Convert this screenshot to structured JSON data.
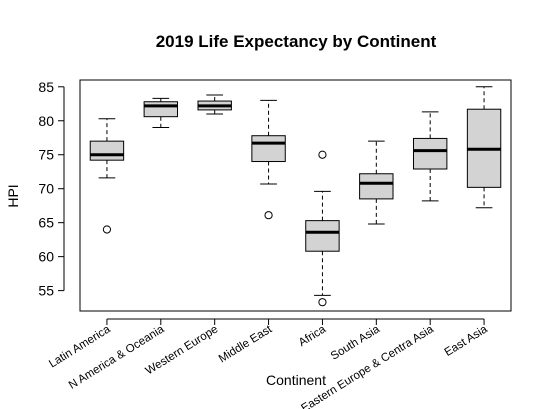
{
  "chart_data": {
    "type": "boxplot",
    "title": "2019 Life Expectancy by Continent",
    "xlabel": "Continent",
    "ylabel": "HPI",
    "ylim": [
      52,
      86
    ],
    "yticks": [
      55,
      60,
      65,
      70,
      75,
      80,
      85
    ],
    "grid": false,
    "colors": {
      "box_fill": "#d3d3d3",
      "stroke": "#000000",
      "median": "#000000"
    },
    "categories": [
      "Latin America",
      "N America & Oceania",
      "Western Europe",
      "Middle East",
      "Africa",
      "South Asia",
      "Eastern Europe & Centra Asia",
      "East Asia"
    ],
    "boxes": [
      {
        "name": "Latin America",
        "whisker_low": 71.6,
        "q1": 74.2,
        "median": 75.0,
        "q3": 77.0,
        "whisker_high": 80.3,
        "outliers": [
          64.0
        ]
      },
      {
        "name": "N America & Oceania",
        "whisker_low": 79.0,
        "q1": 80.6,
        "median": 82.2,
        "q3": 82.8,
        "whisker_high": 83.3,
        "outliers": []
      },
      {
        "name": "Western Europe",
        "whisker_low": 81.0,
        "q1": 81.6,
        "median": 82.2,
        "q3": 82.9,
        "whisker_high": 83.8,
        "outliers": []
      },
      {
        "name": "Middle East",
        "whisker_low": 70.7,
        "q1": 74.0,
        "median": 76.7,
        "q3": 77.8,
        "whisker_high": 83.0,
        "outliers": [
          66.1
        ]
      },
      {
        "name": "Africa",
        "whisker_low": 54.3,
        "q1": 60.8,
        "median": 63.6,
        "q3": 65.3,
        "whisker_high": 69.6,
        "outliers": [
          75.0,
          53.3
        ]
      },
      {
        "name": "South Asia",
        "whisker_low": 64.8,
        "q1": 68.5,
        "median": 70.8,
        "q3": 72.2,
        "whisker_high": 77.0,
        "outliers": []
      },
      {
        "name": "Eastern Europe & Centra Asia",
        "whisker_low": 68.2,
        "q1": 72.9,
        "median": 75.6,
        "q3": 77.4,
        "whisker_high": 81.3,
        "outliers": []
      },
      {
        "name": "East Asia",
        "whisker_low": 67.2,
        "q1": 70.2,
        "median": 75.8,
        "q3": 81.7,
        "whisker_high": 85.0,
        "outliers": []
      }
    ]
  }
}
